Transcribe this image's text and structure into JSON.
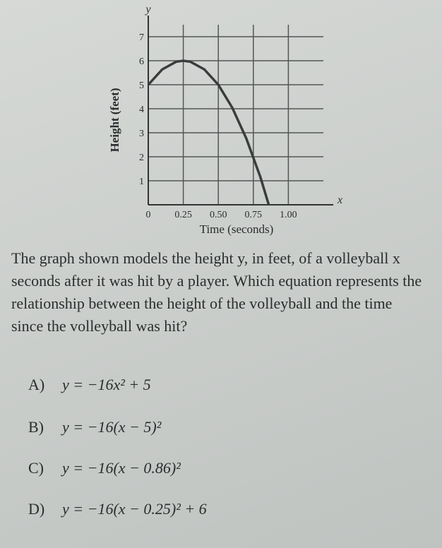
{
  "chart_data": {
    "type": "line",
    "y_symbol": "y",
    "x_symbol": "x",
    "ylabel": "Height (feet)",
    "xlabel": "Time (seconds)",
    "x": [
      0,
      0.1,
      0.2,
      0.25,
      0.3,
      0.4,
      0.5,
      0.6,
      0.7,
      0.8,
      0.86
    ],
    "values": [
      5,
      5.64,
      5.96,
      6,
      5.96,
      5.64,
      5,
      4.04,
      2.76,
      1.16,
      0
    ],
    "color": "#3a3d3e",
    "xlim": [
      0,
      1.25
    ],
    "ylim": [
      0,
      7.5
    ],
    "xticks": [
      0,
      0.25,
      {
        "value": 0.5,
        "label": "0.50"
      },
      0.75,
      {
        "value": 1,
        "label": "1.00"
      }
    ],
    "yticks": [
      1,
      2,
      3,
      4,
      5,
      6,
      7
    ],
    "grid": true
  },
  "question": "The graph shown models the height y, in feet, of a volleyball x seconds after it was hit by a player. Which equation represents the relationship between the height of the volleyball and the time since the volleyball was hit?",
  "options": [
    {
      "letter": "A)",
      "equation": "y = −16x² + 5"
    },
    {
      "letter": "B)",
      "equation": "y = −16(x − 5)²"
    },
    {
      "letter": "C)",
      "equation": "y = −16(x − 0.86)²"
    },
    {
      "letter": "D)",
      "equation": "y = −16(x − 0.25)² + 6"
    }
  ]
}
